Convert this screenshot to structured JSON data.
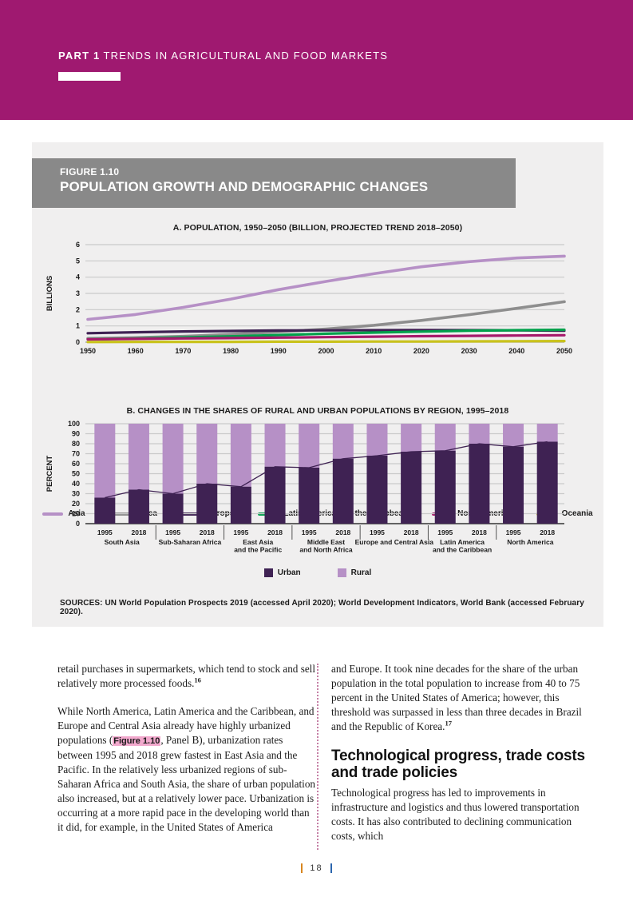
{
  "header": {
    "part_label": "PART 1",
    "part_title": "TRENDS IN AGRICULTURAL AND FOOD MARKETS"
  },
  "figure": {
    "label": "FIGURE 1.10",
    "title": "POPULATION GROWTH AND DEMOGRAPHIC CHANGES",
    "sources": "SOURCES: UN World Population Prospects 2019 (accessed April 2020); World Development Indicators, World Bank (accessed February 2020)."
  },
  "colors": {
    "band_magenta": "#9F1970",
    "title_band_gray": "#898989",
    "figure_bg": "#F0EFEF",
    "grid": "#C9C9C9",
    "axis_dark": "#333333",
    "urban_dark_purple": "#3F2253",
    "rural_light_purple": "#B690C6",
    "highlight_pink": "#F2A9CD",
    "divider_dots": "#C57FA5",
    "footer_orange": "#D8861F",
    "footer_blue": "#2B66AE"
  },
  "chart_data": [
    {
      "type": "line",
      "title": "A. POPULATION, 1950–2050 (BILLION, PROJECTED TREND 2018–2050)",
      "xlabel": "",
      "ylabel": "BILLIONS",
      "x": [
        1950,
        1960,
        1970,
        1980,
        1990,
        2000,
        2010,
        2020,
        2030,
        2040,
        2050
      ],
      "ylim": [
        0,
        6
      ],
      "yticks": [
        0,
        1,
        2,
        3,
        4,
        5,
        6
      ],
      "grid": true,
      "legend_position": "bottom",
      "series": [
        {
          "name": "Asia",
          "color": "#B690C6",
          "width": 3.6,
          "values": [
            1.4,
            1.7,
            2.14,
            2.65,
            3.23,
            3.74,
            4.21,
            4.64,
            4.95,
            5.18,
            5.29
          ]
        },
        {
          "name": "Africa",
          "color": "#8E8E8E",
          "width": 3.6,
          "values": [
            0.23,
            0.28,
            0.36,
            0.48,
            0.63,
            0.81,
            1.04,
            1.34,
            1.69,
            2.08,
            2.49
          ]
        },
        {
          "name": "Europe",
          "color": "#3F2253",
          "width": 3.2,
          "values": [
            0.55,
            0.61,
            0.66,
            0.69,
            0.72,
            0.73,
            0.74,
            0.75,
            0.74,
            0.73,
            0.71
          ]
        },
        {
          "name": "Latin America and the Caribbean",
          "color": "#00A14B",
          "width": 3.2,
          "values": [
            0.17,
            0.22,
            0.29,
            0.36,
            0.44,
            0.52,
            0.59,
            0.65,
            0.71,
            0.74,
            0.76
          ]
        },
        {
          "name": "North America",
          "color": "#A6196B",
          "width": 3.2,
          "values": [
            0.17,
            0.2,
            0.23,
            0.25,
            0.28,
            0.31,
            0.34,
            0.37,
            0.39,
            0.41,
            0.43
          ]
        },
        {
          "name": "Oceania",
          "color": "#C9C21C",
          "width": 3.2,
          "values": [
            0.01,
            0.02,
            0.02,
            0.02,
            0.03,
            0.03,
            0.04,
            0.04,
            0.05,
            0.06,
            0.07
          ]
        }
      ]
    },
    {
      "type": "bar",
      "stacked": true,
      "title": "B. CHANGES IN THE SHARES OF RURAL AND URBAN POPULATIONS BY REGION, 1995–2018",
      "xlabel": "",
      "ylabel": "PERCENT",
      "ylim": [
        0,
        100
      ],
      "yticks": [
        0,
        10,
        20,
        30,
        40,
        50,
        60,
        70,
        80,
        90,
        100
      ],
      "grid": true,
      "legend_position": "bottom",
      "year_labels": [
        "1995",
        "2018"
      ],
      "categories": [
        [
          "South Asia"
        ],
        [
          "Sub-Saharan Africa"
        ],
        [
          "East Asia",
          "and the Pacific"
        ],
        [
          "Middle East",
          "and North Africa"
        ],
        [
          "Europe and Central Asia"
        ],
        [
          "Latin America",
          "and the Caribbean"
        ],
        [
          "North America"
        ]
      ],
      "series": [
        {
          "name": "Urban",
          "color": "#3F2253",
          "values": [
            [
              26,
              34
            ],
            [
              30,
              40
            ],
            [
              37,
              57
            ],
            [
              56,
              65
            ],
            [
              68,
              72
            ],
            [
              73,
              80
            ],
            [
              77,
              82
            ]
          ]
        },
        {
          "name": "Rural",
          "color": "#B690C6",
          "values": [
            [
              74,
              66
            ],
            [
              70,
              60
            ],
            [
              63,
              43
            ],
            [
              44,
              35
            ],
            [
              32,
              28
            ],
            [
              27,
              20
            ],
            [
              23,
              18
            ]
          ]
        }
      ],
      "trend_line_through_urban_tops": true
    }
  ],
  "body": {
    "left_column": {
      "p1": "retail purchases in supermarkets, which tend to stock and sell relatively more processed foods.",
      "p1_footnote": "16",
      "p2_before": "While North America, Latin America and the Caribbean, and Europe and Central Asia already have highly urbanized populations (",
      "p2_ref": "Figure 1.10",
      "p2_after": ", Panel B), urbanization rates between 1995 and 2018 grew fastest in East Asia and the Pacific. In the relatively less urbanized regions of sub-Saharan Africa and South Asia, the share of urban population also increased, but at a relatively lower pace. Urbanization is occurring at a more rapid pace in the developing world than it did, for example, in the United States of America"
    },
    "right_column": {
      "p1": "and Europe. It took nine decades for the share of the urban population in the total population to increase from 40 to 75 percent in the United States of America; however, this threshold was surpassed in less than three decades in Brazil and the Republic of Korea.",
      "p1_footnote": "17",
      "heading": "Technological progress, trade costs and trade policies",
      "p2": "Technological progress has led to improvements in infrastructure and logistics and thus lowered transportation costs. It has also contributed to declining communication costs, which"
    }
  },
  "footer": {
    "page_number": "18"
  }
}
